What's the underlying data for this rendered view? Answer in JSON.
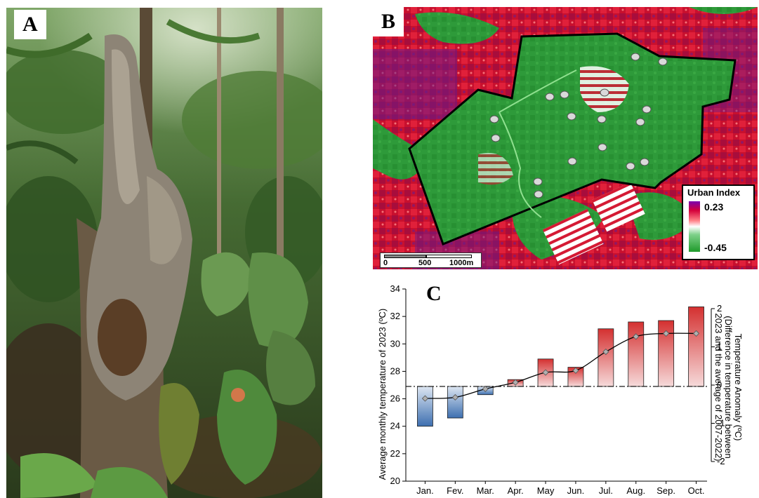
{
  "panels": {
    "a": {
      "label": "A"
    },
    "b": {
      "label": "B"
    },
    "c": {
      "label": "C"
    }
  },
  "map": {
    "legend_title": "Urban Index",
    "legend_max": "0.23",
    "legend_min": "-0.45",
    "legend_colors": [
      "#7b00b0",
      "#d4003a",
      "#ffffff",
      "#1f9a2a"
    ],
    "scale_labels": [
      "0",
      "500",
      "1000m"
    ]
  },
  "chart_data": {
    "type": "bar",
    "categories": [
      "Jan.",
      "Fev.",
      "Mar.",
      "Apr.",
      "May",
      "Jun.",
      "Jul.",
      "Aug.",
      "Sep.",
      "Oct."
    ],
    "values": [
      24.0,
      24.6,
      26.3,
      27.4,
      28.9,
      28.3,
      31.1,
      31.6,
      31.7,
      32.7
    ],
    "baseline": 26.9,
    "ylabel": "Average monthly temperature of 2023 (ºC)",
    "ylim": [
      20,
      34
    ],
    "yticks": [
      20,
      22,
      24,
      26,
      28,
      30,
      32,
      34
    ],
    "y2label_line1": "Temperature Anomaly (ºC)",
    "y2label_line2": "(Difference in temperature between",
    "y2label_line3": "2023 and the average of 2007-2022)",
    "y2lim": [
      -2,
      2
    ],
    "y2ticks": [
      -2,
      -1,
      0,
      1,
      2
    ],
    "series": [
      {
        "name": "",
        "type": "line",
        "axis": "right",
        "values": [
          -0.35,
          -0.32,
          -0.1,
          0.07,
          0.33,
          0.38,
          0.87,
          1.27,
          1.35,
          1.35
        ]
      }
    ],
    "colors": {
      "positive": "#d43030",
      "negative": "#3d6fb0",
      "line": "#000000",
      "marker": "#b0b0b0"
    },
    "grid": false
  }
}
